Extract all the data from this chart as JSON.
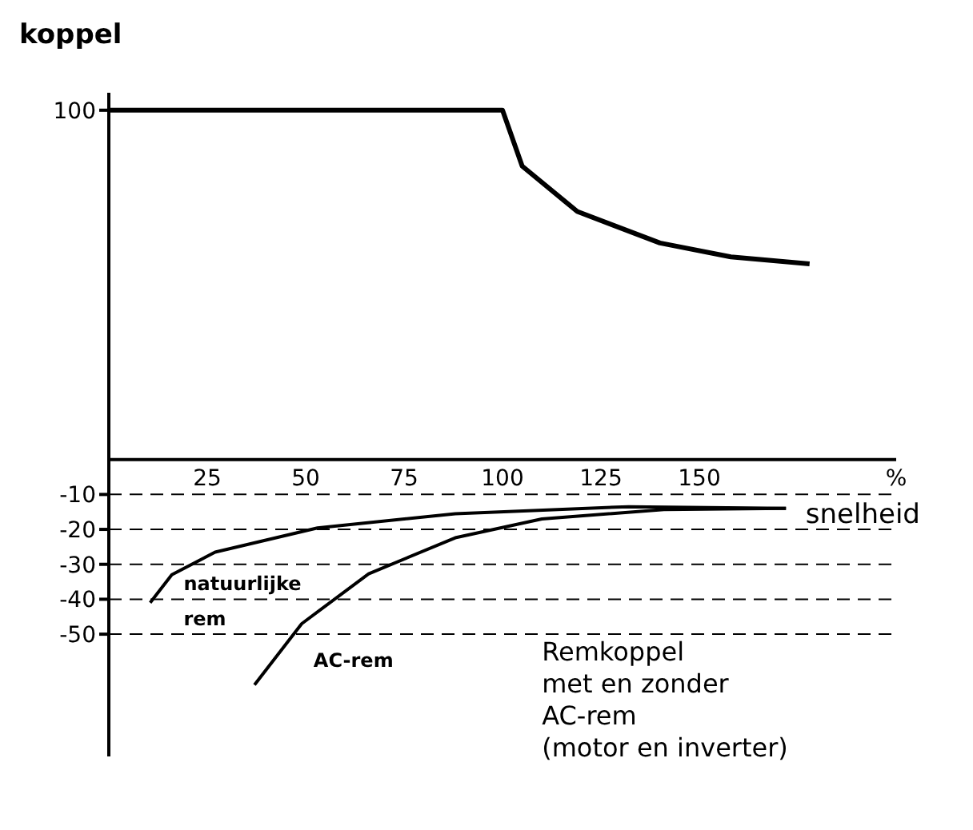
{
  "chart_data": {
    "type": "line",
    "ylabel": "koppel",
    "xlabel": "snelheid",
    "xlim": [
      0,
      200
    ],
    "ylim": [
      -85,
      105
    ],
    "xticks": [
      25,
      50,
      75,
      100,
      125,
      150,
      {
        "value": 200,
        "label": "%"
      }
    ],
    "yticks": [
      100,
      -10,
      -20,
      -30,
      -40,
      -50
    ],
    "marker": "none",
    "line_style": "solid",
    "series": [
      {
        "color": "#000000",
        "x": [
          0,
          100,
          105,
          119,
          140,
          158,
          178
        ],
        "values": [
          100,
          100,
          84,
          71,
          62,
          58,
          56
        ]
      },
      {
        "color": "#000000",
        "x": [
          10.5,
          16,
          27,
          53,
          88,
          132,
          172
        ],
        "values": [
          -41,
          -33,
          -26.5,
          -19.6,
          -15.5,
          -13.5,
          -14
        ]
      },
      {
        "color": "#000000",
        "x": [
          37,
          49,
          66,
          88,
          110,
          141,
          172
        ],
        "values": [
          -64.5,
          -47,
          -32.7,
          -22.4,
          -17,
          -14.3,
          -14
        ]
      }
    ],
    "ref_lines": [
      {
        "axis": "y",
        "value": -10,
        "color": "#000000",
        "line_style": "dashed"
      },
      {
        "axis": "y",
        "value": -20,
        "color": "#000000",
        "line_style": "dashed"
      },
      {
        "axis": "y",
        "value": -30,
        "color": "#000000",
        "line_style": "dashed"
      },
      {
        "axis": "y",
        "value": -40,
        "color": "#000000",
        "line_style": "dashed"
      },
      {
        "axis": "y",
        "value": -50,
        "color": "#000000",
        "line_style": "dashed"
      }
    ],
    "annotations": [
      "natuurlijke rem",
      "AC-rem",
      "Remkoppel\nmet en zonder\nAC-rem\n(motor en inverter)"
    ]
  }
}
